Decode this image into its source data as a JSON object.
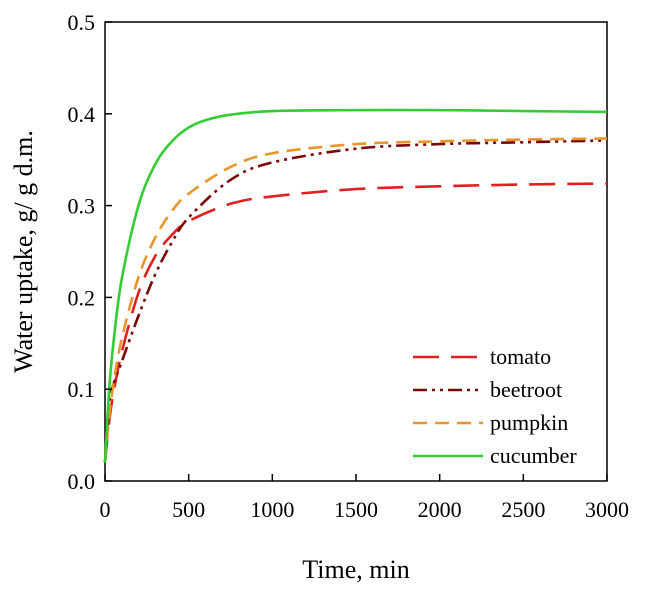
{
  "chart_data": {
    "type": "line",
    "title": "",
    "xlabel": "Time, min",
    "ylabel": "Water uptake, g/ g d.m.",
    "xlim": [
      0,
      3000
    ],
    "ylim": [
      0,
      0.5
    ],
    "xticks": [
      0,
      500,
      1000,
      1500,
      2000,
      2500,
      3000
    ],
    "yticks": [
      0.0,
      0.1,
      0.2,
      0.3,
      0.4,
      0.5
    ],
    "xtick_labels": [
      "0",
      "500",
      "1000",
      "1500",
      "2000",
      "2500",
      "3000"
    ],
    "ytick_labels": [
      "0.0",
      "0.1",
      "0.2",
      "0.3",
      "0.4",
      "0.5"
    ],
    "grid": false,
    "legend_position": "bottom-right",
    "series": [
      {
        "name": "tomato",
        "color": "#e02020",
        "style": "long-dash",
        "x": [
          0,
          25,
          50,
          100,
          200,
          300,
          400,
          500,
          750,
          1000,
          1500,
          2000,
          2500,
          3000
        ],
        "y": [
          0.02,
          0.065,
          0.095,
          0.14,
          0.205,
          0.245,
          0.268,
          0.283,
          0.302,
          0.31,
          0.318,
          0.321,
          0.323,
          0.324
        ]
      },
      {
        "name": "beetroot",
        "color": "#7a0a0a",
        "style": "dash-dot-dot",
        "x": [
          0,
          25,
          50,
          100,
          200,
          300,
          400,
          500,
          750,
          1000,
          1500,
          2000,
          2500,
          3000
        ],
        "y": [
          0.02,
          0.085,
          0.105,
          0.13,
          0.18,
          0.225,
          0.26,
          0.287,
          0.328,
          0.347,
          0.362,
          0.367,
          0.369,
          0.371
        ]
      },
      {
        "name": "pumpkin",
        "color": "#e8962a",
        "style": "dash",
        "x": [
          0,
          25,
          50,
          100,
          200,
          300,
          400,
          500,
          750,
          1000,
          1500,
          2000,
          2500,
          3000
        ],
        "y": [
          0.02,
          0.07,
          0.105,
          0.155,
          0.222,
          0.265,
          0.294,
          0.313,
          0.342,
          0.357,
          0.367,
          0.37,
          0.372,
          0.373
        ]
      },
      {
        "name": "cucumber",
        "color": "#33cc33",
        "style": "solid",
        "x": [
          0,
          25,
          50,
          100,
          200,
          300,
          400,
          500,
          600,
          750,
          1000,
          1500,
          2000,
          2500,
          3000
        ],
        "y": [
          0.02,
          0.1,
          0.15,
          0.22,
          0.3,
          0.345,
          0.37,
          0.385,
          0.393,
          0.399,
          0.403,
          0.404,
          0.404,
          0.403,
          0.402
        ]
      }
    ]
  }
}
